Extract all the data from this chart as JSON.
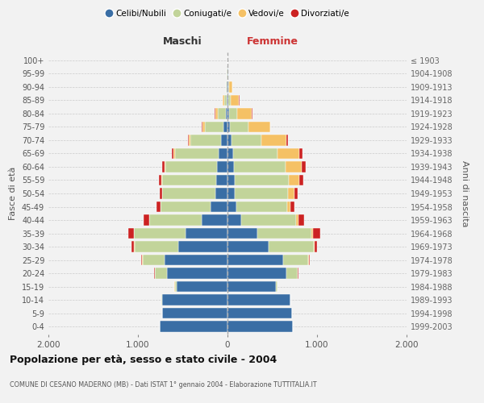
{
  "age_groups": [
    "0-4",
    "5-9",
    "10-14",
    "15-19",
    "20-24",
    "25-29",
    "30-34",
    "35-39",
    "40-44",
    "45-49",
    "50-54",
    "55-59",
    "60-64",
    "65-69",
    "70-74",
    "75-79",
    "80-84",
    "85-89",
    "90-94",
    "95-99",
    "100+"
  ],
  "birth_years": [
    "1999-2003",
    "1994-1998",
    "1989-1993",
    "1984-1988",
    "1979-1983",
    "1974-1978",
    "1969-1973",
    "1964-1968",
    "1959-1963",
    "1954-1958",
    "1949-1953",
    "1944-1948",
    "1939-1943",
    "1934-1938",
    "1929-1933",
    "1924-1928",
    "1919-1923",
    "1914-1918",
    "1909-1913",
    "1904-1908",
    "≤ 1903"
  ],
  "maschi_celibi": [
    760,
    730,
    730,
    570,
    680,
    700,
    550,
    470,
    290,
    185,
    135,
    125,
    115,
    95,
    70,
    45,
    22,
    12,
    8,
    3,
    2
  ],
  "maschi_coniugati": [
    0,
    0,
    5,
    20,
    130,
    250,
    490,
    575,
    585,
    565,
    595,
    605,
    575,
    490,
    340,
    205,
    90,
    28,
    8,
    2,
    0
  ],
  "maschi_vedovi": [
    0,
    0,
    0,
    1,
    3,
    5,
    2,
    2,
    2,
    2,
    3,
    5,
    10,
    16,
    22,
    32,
    22,
    12,
    3,
    0,
    0
  ],
  "maschi_divorziati": [
    0,
    0,
    0,
    2,
    4,
    6,
    32,
    58,
    58,
    42,
    28,
    32,
    32,
    22,
    12,
    9,
    6,
    3,
    0,
    0,
    0
  ],
  "femmine_nubili": [
    730,
    720,
    700,
    540,
    660,
    625,
    455,
    335,
    150,
    100,
    82,
    77,
    72,
    62,
    42,
    30,
    15,
    10,
    10,
    5,
    2
  ],
  "femmine_coniugate": [
    0,
    0,
    5,
    20,
    120,
    280,
    505,
    605,
    615,
    565,
    595,
    605,
    575,
    495,
    335,
    200,
    90,
    30,
    8,
    3,
    0
  ],
  "femmine_vedove": [
    0,
    0,
    1,
    2,
    5,
    8,
    10,
    16,
    26,
    42,
    72,
    122,
    182,
    245,
    285,
    245,
    165,
    88,
    32,
    5,
    0
  ],
  "femmine_divorziate": [
    0,
    0,
    0,
    1,
    5,
    10,
    32,
    82,
    68,
    42,
    36,
    42,
    42,
    32,
    10,
    5,
    5,
    3,
    2,
    0,
    0
  ],
  "colors": {
    "celibi_nubili": "#3A6EA5",
    "coniugati_e": "#C2D49A",
    "vedovi_e": "#F5C165",
    "divorziati_e": "#CC2222"
  },
  "xlim": 2000,
  "xticks": [
    -2000,
    -1000,
    0,
    1000,
    2000
  ],
  "xticklabels": [
    "2.000",
    "1.000",
    "0",
    "1.000",
    "2.000"
  ],
  "title": "Popolazione per età, sesso e stato civile - 2004",
  "subtitle": "COMUNE DI CESANO MADERNO (MB) - Dati ISTAT 1° gennaio 2004 - Elaborazione TUTTITALIA.IT",
  "ylabel_left": "Fasce di età",
  "ylabel_right": "Anni di nascita",
  "label_maschi": "Maschi",
  "label_femmine": "Femmine",
  "legend_labels": [
    "Celibi/Nubili",
    "Coniugati/e",
    "Vedovi/e",
    "Divorziati/e"
  ],
  "bg_color": "#F2F2F2",
  "grid_color": "#CCCCCC"
}
